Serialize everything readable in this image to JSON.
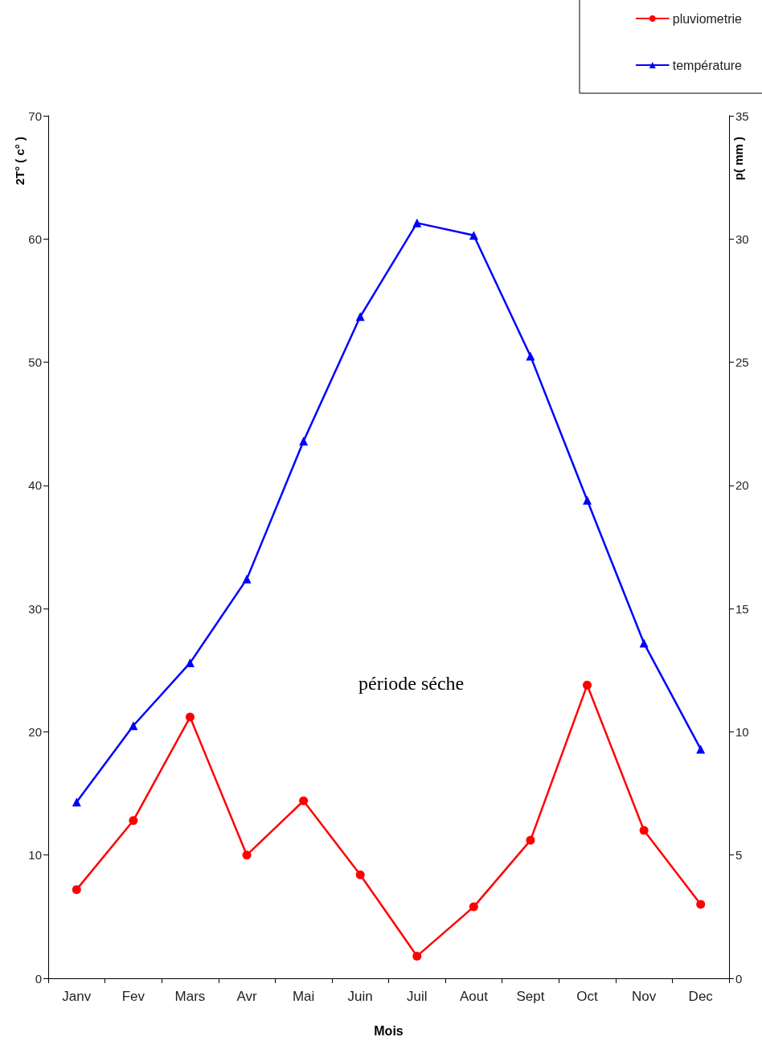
{
  "chart_data": {
    "type": "line",
    "categories": [
      "Janv",
      "Fev",
      "Mars",
      "Avr",
      "Mai",
      "Juin",
      "Juil",
      "Aout",
      "Sept",
      "Oct",
      "Nov",
      "Dec"
    ],
    "series": [
      {
        "name": "pluviometrie",
        "color": "#ff0000",
        "axis": "y2",
        "marker": "circle",
        "values": [
          3.6,
          6.4,
          10.6,
          5.0,
          7.2,
          4.2,
          0.9,
          2.9,
          5.6,
          11.9,
          6.0,
          3.0
        ]
      },
      {
        "name": "température",
        "color": "#0000ff",
        "marker": "triangle",
        "values": [
          14.3,
          20.5,
          25.6,
          32.4,
          43.6,
          53.7,
          61.3,
          60.3,
          50.5,
          38.8,
          27.2,
          18.6
        ]
      }
    ],
    "xlabel": "Mois",
    "ylabel": "2T° ( c° )",
    "y2label": "p( mm )",
    "ylim": [
      0,
      70
    ],
    "yticks": [
      0,
      10,
      20,
      30,
      40,
      50,
      60,
      70
    ],
    "y2lim": [
      0,
      35
    ],
    "y2ticks": [
      0,
      5,
      10,
      15,
      20,
      25,
      30,
      35
    ],
    "annotations": [
      "période séche"
    ],
    "legend": "top right",
    "grid": false,
    "line_style": "solid"
  }
}
